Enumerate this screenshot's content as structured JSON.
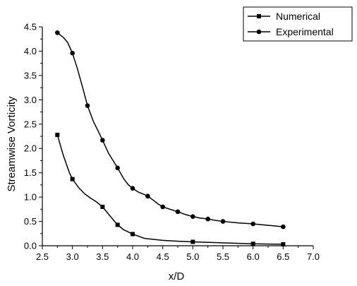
{
  "chart_data": {
    "type": "line",
    "xlabel": "x/D",
    "ylabel": "Streamwise Vorticity",
    "xlim": [
      2.5,
      7.0
    ],
    "ylim": [
      0.0,
      4.5
    ],
    "x_ticks": [
      "2.5",
      "3.0",
      "3.5",
      "4.0",
      "4.5",
      "5.0",
      "5.5",
      "6.0",
      "6.5",
      "7.0"
    ],
    "y_ticks": [
      "0.0",
      "0.5",
      "1.0",
      "1.5",
      "2.0",
      "2.5",
      "3.0",
      "3.5",
      "4.0",
      "4.5"
    ],
    "grid": false,
    "legend_position": "top-right",
    "series": [
      {
        "name": "Numerical",
        "marker": "square",
        "color": "#000000",
        "points": [
          [
            2.75,
            2.28
          ],
          [
            3.0,
            1.37
          ],
          [
            3.5,
            0.8
          ],
          [
            3.75,
            0.43
          ],
          [
            4.0,
            0.24
          ],
          [
            5.0,
            0.08
          ],
          [
            6.0,
            0.04
          ],
          [
            6.5,
            0.03
          ]
        ],
        "curve": [
          [
            2.75,
            2.28
          ],
          [
            2.85,
            1.85
          ],
          [
            2.95,
            1.5
          ],
          [
            3.0,
            1.37
          ],
          [
            3.1,
            1.2
          ],
          [
            3.2,
            1.07
          ],
          [
            3.3,
            0.98
          ],
          [
            3.4,
            0.9
          ],
          [
            3.5,
            0.8
          ],
          [
            3.6,
            0.65
          ],
          [
            3.68,
            0.53
          ],
          [
            3.75,
            0.43
          ],
          [
            3.85,
            0.33
          ],
          [
            4.0,
            0.24
          ],
          [
            4.2,
            0.15
          ],
          [
            4.5,
            0.11
          ],
          [
            4.8,
            0.09
          ],
          [
            5.0,
            0.08
          ],
          [
            5.5,
            0.06
          ],
          [
            6.0,
            0.04
          ],
          [
            6.5,
            0.03
          ]
        ]
      },
      {
        "name": "Experimental",
        "marker": "circle",
        "color": "#000000",
        "points": [
          [
            2.75,
            4.38
          ],
          [
            3.0,
            3.96
          ],
          [
            3.25,
            2.88
          ],
          [
            3.5,
            2.17
          ],
          [
            3.75,
            1.6
          ],
          [
            4.0,
            1.18
          ],
          [
            4.25,
            1.02
          ],
          [
            4.5,
            0.8
          ],
          [
            4.75,
            0.7
          ],
          [
            5.0,
            0.6
          ],
          [
            5.25,
            0.55
          ],
          [
            5.5,
            0.5
          ],
          [
            6.0,
            0.45
          ],
          [
            6.5,
            0.39
          ]
        ],
        "curve": [
          [
            2.75,
            4.38
          ],
          [
            2.85,
            4.28
          ],
          [
            2.92,
            4.18
          ],
          [
            3.0,
            3.96
          ],
          [
            3.08,
            3.65
          ],
          [
            3.17,
            3.25
          ],
          [
            3.25,
            2.88
          ],
          [
            3.35,
            2.55
          ],
          [
            3.45,
            2.3
          ],
          [
            3.5,
            2.17
          ],
          [
            3.6,
            1.9
          ],
          [
            3.7,
            1.7
          ],
          [
            3.75,
            1.6
          ],
          [
            3.85,
            1.38
          ],
          [
            3.93,
            1.25
          ],
          [
            4.0,
            1.18
          ],
          [
            4.1,
            1.1
          ],
          [
            4.18,
            1.06
          ],
          [
            4.25,
            1.02
          ],
          [
            4.35,
            0.93
          ],
          [
            4.42,
            0.86
          ],
          [
            4.5,
            0.8
          ],
          [
            4.62,
            0.75
          ],
          [
            4.75,
            0.7
          ],
          [
            4.88,
            0.64
          ],
          [
            5.0,
            0.6
          ],
          [
            5.12,
            0.57
          ],
          [
            5.25,
            0.55
          ],
          [
            5.38,
            0.52
          ],
          [
            5.5,
            0.5
          ],
          [
            5.75,
            0.47
          ],
          [
            6.0,
            0.45
          ],
          [
            6.25,
            0.42
          ],
          [
            6.5,
            0.39
          ]
        ]
      }
    ]
  }
}
